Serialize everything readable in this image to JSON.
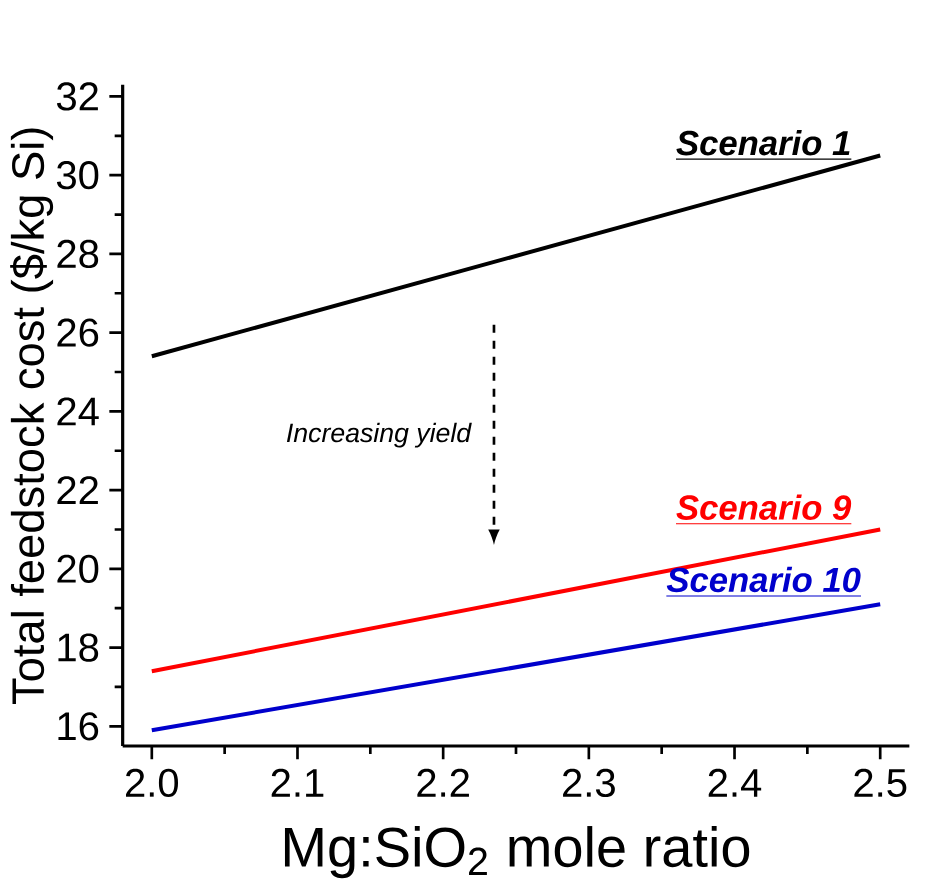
{
  "chart_data": {
    "type": "line",
    "xlabel": "Mg:SiO$_{2}$ mole ratio",
    "ylabel": "Total feedstock cost ($/kg Si)",
    "x": [
      2.0,
      2.5
    ],
    "series": [
      {
        "name": "Scenario 1",
        "color": "#000000",
        "values": [
          25.4,
          30.5
        ]
      },
      {
        "name": "Scenario 9",
        "color": "#ff0000",
        "values": [
          17.4,
          21.0
        ]
      },
      {
        "name": "Scenario 10",
        "color": "#0000cc",
        "values": [
          15.9,
          19.1
        ]
      }
    ],
    "xlim": [
      1.98,
      2.52
    ],
    "ylim": [
      15.5,
      32.3
    ],
    "xticks": [
      {
        "value": 2.0,
        "label": "2.0"
      },
      {
        "value": 2.1,
        "label": "2.1"
      },
      {
        "value": 2.2,
        "label": "2.2"
      },
      {
        "value": 2.3,
        "label": "2.3"
      },
      {
        "value": 2.4,
        "label": "2.4"
      },
      {
        "value": 2.5,
        "label": "2.5"
      }
    ],
    "yticks": [
      16,
      18,
      20,
      22,
      24,
      26,
      28,
      30,
      32
    ],
    "annotations": [
      "Increasing yield"
    ],
    "grid": false,
    "legend": false,
    "marker": "none",
    "line_style": "solid"
  }
}
